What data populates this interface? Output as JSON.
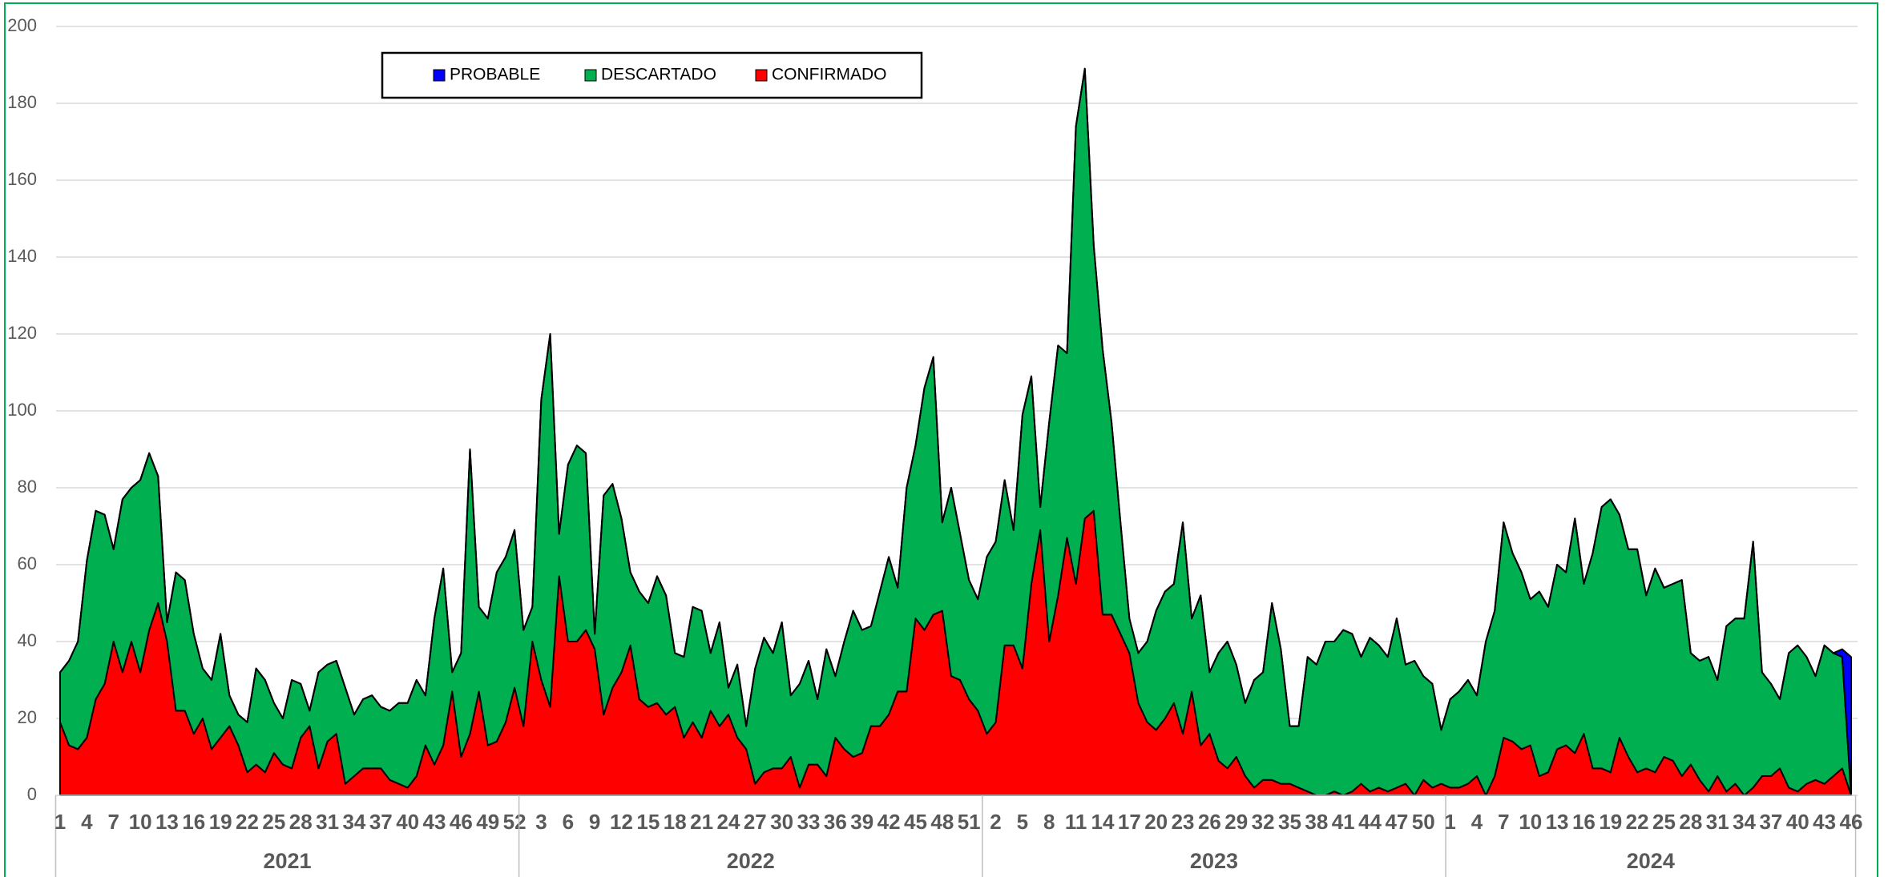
{
  "chart_data": {
    "type": "stacked_area",
    "category_groups": [
      {
        "label": "2021",
        "categories": [
          1,
          null,
          null,
          4,
          null,
          null,
          7,
          null,
          null,
          10,
          null,
          null,
          13,
          null,
          null,
          16,
          null,
          null,
          19,
          null,
          null,
          22,
          null,
          null,
          25,
          null,
          null,
          28,
          null,
          null,
          31,
          null,
          null,
          34,
          null,
          null,
          37,
          null,
          null,
          40,
          null,
          null,
          43,
          null,
          null,
          46,
          null,
          null,
          49,
          null,
          null,
          52
        ]
      },
      {
        "label": "2022",
        "categories": [
          null,
          null,
          3,
          null,
          null,
          6,
          null,
          null,
          9,
          null,
          null,
          12,
          null,
          null,
          15,
          null,
          null,
          18,
          null,
          null,
          21,
          null,
          null,
          24,
          null,
          null,
          27,
          null,
          null,
          30,
          null,
          null,
          33,
          null,
          null,
          36,
          null,
          null,
          39,
          null,
          null,
          42,
          null,
          null,
          45,
          null,
          null,
          48,
          null,
          null,
          51,
          null
        ]
      },
      {
        "label": "2023",
        "categories": [
          null,
          2,
          null,
          null,
          5,
          null,
          null,
          8,
          null,
          null,
          11,
          null,
          null,
          14,
          null,
          null,
          17,
          null,
          null,
          20,
          null,
          null,
          23,
          null,
          null,
          26,
          null,
          null,
          29,
          null,
          null,
          32,
          null,
          null,
          35,
          null,
          null,
          38,
          null,
          null,
          41,
          null,
          null,
          44,
          null,
          null,
          47,
          null,
          null,
          50,
          null,
          null
        ]
      },
      {
        "label": "2024",
        "categories": [
          1,
          null,
          null,
          4,
          null,
          null,
          7,
          null,
          null,
          10,
          null,
          null,
          13,
          null,
          null,
          16,
          null,
          null,
          19,
          null,
          null,
          22,
          null,
          null,
          25,
          null,
          null,
          28,
          null,
          null,
          31,
          null,
          null,
          34,
          null,
          null,
          37,
          null,
          null,
          40,
          null,
          null,
          43,
          null,
          null,
          46
        ]
      }
    ],
    "series": [
      {
        "name": "PROBABLE",
        "color": "#0000ff",
        "values": [
          0,
          0,
          0,
          0,
          0,
          0,
          0,
          0,
          0,
          0,
          0,
          0,
          0,
          0,
          0,
          0,
          0,
          0,
          0,
          0,
          0,
          0,
          0,
          0,
          0,
          0,
          0,
          0,
          0,
          0,
          0,
          0,
          0,
          0,
          0,
          0,
          0,
          0,
          0,
          0,
          0,
          0,
          0,
          0,
          0,
          0,
          0,
          0,
          0,
          0,
          0,
          0,
          0,
          0,
          0,
          0,
          0,
          0,
          0,
          0,
          0,
          0,
          0,
          0,
          0,
          0,
          0,
          0,
          0,
          0,
          0,
          0,
          0,
          0,
          0,
          0,
          0,
          0,
          0,
          0,
          0,
          0,
          0,
          0,
          0,
          0,
          0,
          0,
          0,
          0,
          0,
          0,
          0,
          0,
          0,
          0,
          0,
          0,
          0,
          0,
          0,
          0,
          0,
          0,
          0,
          0,
          0,
          0,
          0,
          0,
          0,
          0,
          0,
          0,
          0,
          0,
          0,
          0,
          0,
          0,
          0,
          0,
          0,
          0,
          0,
          0,
          0,
          0,
          0,
          0,
          0,
          0,
          0,
          0,
          0,
          0,
          0,
          0,
          0,
          0,
          0,
          0,
          0,
          0,
          0,
          0,
          0,
          0,
          0,
          0,
          0,
          0,
          0,
          0,
          0,
          0,
          0,
          0,
          0,
          0,
          0,
          0,
          0,
          0,
          0,
          0,
          0,
          0,
          0,
          0,
          0,
          0,
          0,
          0,
          0,
          0,
          0,
          0,
          0,
          0,
          0,
          0,
          0,
          0,
          0,
          0,
          0,
          0,
          0,
          0,
          0,
          0,
          0,
          0,
          0,
          0,
          0,
          0,
          0,
          0,
          2,
          36
        ]
      },
      {
        "name": "DESCARTADO",
        "color": "#00b050",
        "values": [
          13,
          22,
          28,
          46,
          49,
          44,
          24,
          45,
          40,
          50,
          46,
          33,
          5,
          36,
          34,
          26,
          13,
          18,
          27,
          8,
          8,
          13,
          25,
          24,
          13,
          12,
          23,
          14,
          4,
          25,
          20,
          19,
          25,
          16,
          18,
          19,
          16,
          18,
          21,
          22,
          25,
          13,
          38,
          46,
          5,
          27,
          74,
          22,
          33,
          44,
          43,
          41,
          25,
          9,
          73,
          97,
          11,
          46,
          51,
          46,
          4,
          57,
          53,
          40,
          19,
          28,
          27,
          33,
          31,
          14,
          21,
          30,
          33,
          15,
          27,
          7,
          19,
          6,
          30,
          35,
          30,
          38,
          16,
          27,
          27,
          17,
          33,
          16,
          28,
          38,
          32,
          26,
          35,
          41,
          27,
          53,
          45,
          63,
          67,
          23,
          49,
          38,
          31,
          29,
          46,
          47,
          43,
          30,
          66,
          54,
          6,
          57,
          65,
          48,
          119,
          117,
          69,
          69,
          50,
          29,
          9,
          13,
          21,
          31,
          33,
          31,
          55,
          19,
          39,
          16,
          28,
          33,
          24,
          19,
          28,
          28,
          46,
          35,
          15,
          16,
          35,
          34,
          40,
          39,
          43,
          41,
          33,
          40,
          37,
          35,
          44,
          31,
          35,
          27,
          27,
          14,
          23,
          25,
          27,
          21,
          40,
          43,
          56,
          49,
          46,
          38,
          48,
          43,
          48,
          45,
          61,
          39,
          56,
          68,
          71,
          58,
          54,
          58,
          45,
          53,
          44,
          46,
          51,
          29,
          31,
          35,
          25,
          43,
          43,
          46,
          64,
          27,
          24,
          18,
          35,
          38,
          33,
          27,
          36,
          32,
          29,
          0
        ]
      },
      {
        "name": "CONFIRMADO",
        "color": "#ff0000",
        "values": [
          19,
          13,
          12,
          15,
          25,
          29,
          40,
          32,
          40,
          32,
          43,
          50,
          40,
          22,
          22,
          16,
          20,
          12,
          15,
          18,
          13,
          6,
          8,
          6,
          11,
          8,
          7,
          15,
          18,
          7,
          14,
          16,
          3,
          5,
          7,
          7,
          7,
          4,
          3,
          2,
          5,
          13,
          8,
          13,
          27,
          10,
          16,
          27,
          13,
          14,
          19,
          28,
          18,
          40,
          30,
          23,
          57,
          40,
          40,
          43,
          38,
          21,
          28,
          32,
          39,
          25,
          23,
          24,
          21,
          23,
          15,
          19,
          15,
          22,
          18,
          21,
          15,
          12,
          3,
          6,
          7,
          7,
          10,
          2,
          8,
          8,
          5,
          15,
          12,
          10,
          11,
          18,
          18,
          21,
          27,
          27,
          46,
          43,
          47,
          48,
          31,
          30,
          25,
          22,
          16,
          19,
          39,
          39,
          33,
          55,
          69,
          40,
          52,
          67,
          55,
          72,
          74,
          47,
          47,
          42,
          37,
          24,
          19,
          17,
          20,
          24,
          16,
          27,
          13,
          16,
          9,
          7,
          10,
          5,
          2,
          4,
          4,
          3,
          3,
          2,
          1,
          0,
          0,
          1,
          0,
          1,
          3,
          1,
          2,
          1,
          2,
          3,
          0,
          4,
          2,
          3,
          2,
          2,
          3,
          5,
          0,
          5,
          15,
          14,
          12,
          13,
          5,
          6,
          12,
          13,
          11,
          16,
          7,
          7,
          6,
          15,
          10,
          6,
          7,
          6,
          10,
          9,
          5,
          8,
          4,
          1,
          5,
          1,
          3,
          0,
          2,
          5,
          5,
          7,
          2,
          1,
          3,
          4,
          3,
          5,
          7,
          0
        ]
      }
    ],
    "ylim": [
      0,
      200
    ],
    "yticks": [
      0,
      20,
      40,
      60,
      80,
      100,
      120,
      140,
      160,
      180,
      200
    ],
    "grid": true,
    "legend": "top"
  }
}
